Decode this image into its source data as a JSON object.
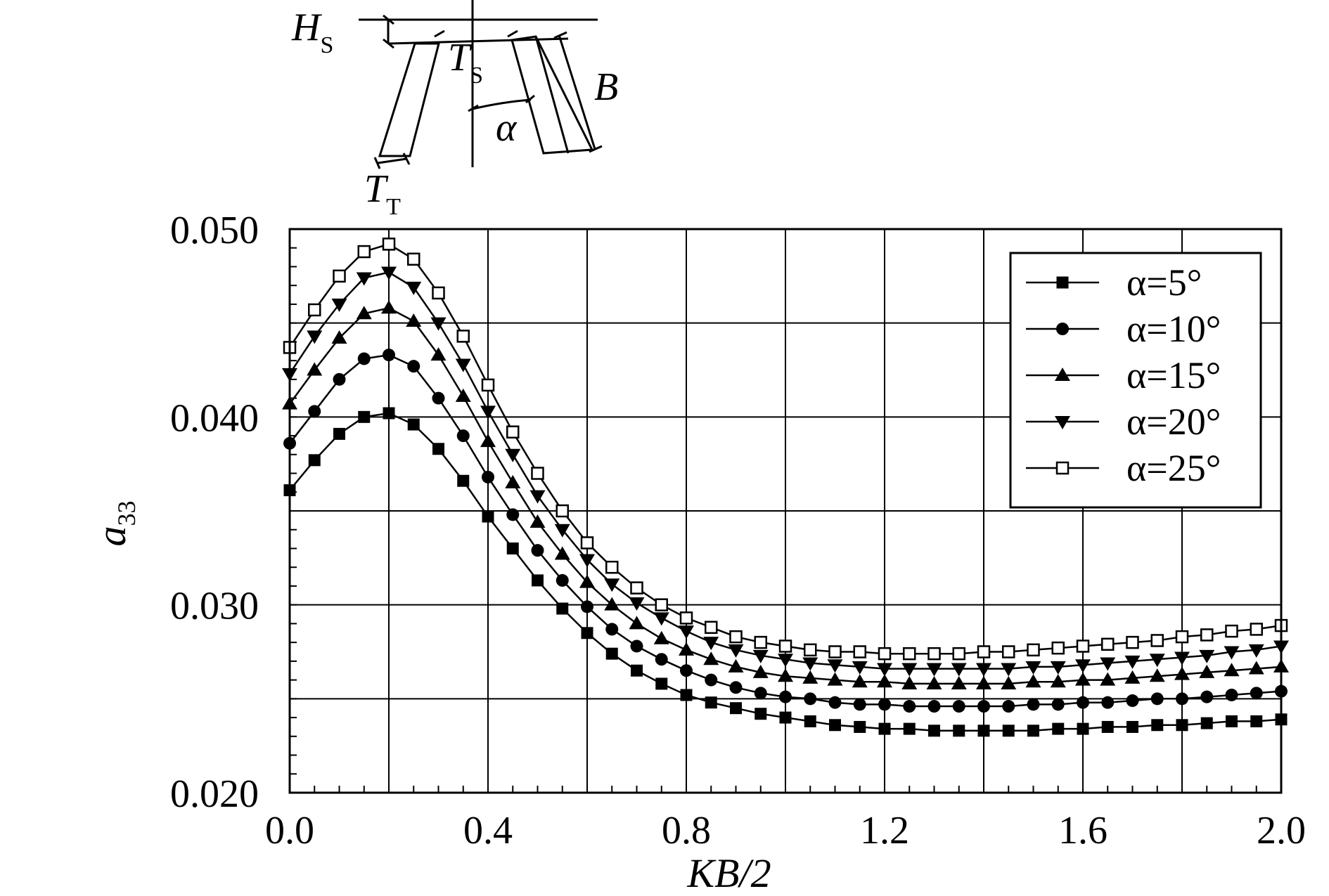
{
  "chart_data": {
    "type": "line",
    "xlabel": "KB/2",
    "ylabel_main": "a",
    "ylabel_sub": "33",
    "xlim": [
      0.0,
      2.0
    ],
    "ylim": [
      0.02,
      0.05
    ],
    "x_ticks": [
      "0.0",
      "0.4",
      "0.8",
      "1.2",
      "1.6",
      "2.0"
    ],
    "x_tick_values": [
      0.0,
      0.4,
      0.8,
      1.2,
      1.6,
      2.0
    ],
    "y_ticks": [
      "0.020",
      "0.030",
      "0.040",
      "0.050"
    ],
    "y_tick_values": [
      0.02,
      0.03,
      0.04,
      0.05
    ],
    "grid": true,
    "legend_position": "top-right",
    "x": [
      0.0,
      0.05,
      0.1,
      0.15,
      0.2,
      0.25,
      0.3,
      0.35,
      0.4,
      0.45,
      0.5,
      0.55,
      0.6,
      0.65,
      0.7,
      0.75,
      0.8,
      0.85,
      0.9,
      0.95,
      1.0,
      1.05,
      1.1,
      1.15,
      1.2,
      1.25,
      1.3,
      1.35,
      1.4,
      1.45,
      1.5,
      1.55,
      1.6,
      1.65,
      1.7,
      1.75,
      1.8,
      1.85,
      1.9,
      1.95,
      2.0
    ],
    "series": [
      {
        "name": "α=5°",
        "marker": "square-filled",
        "values": [
          0.0361,
          0.0377,
          0.0391,
          0.04,
          0.0402,
          0.0396,
          0.0383,
          0.0366,
          0.0347,
          0.033,
          0.0313,
          0.0298,
          0.0285,
          0.0274,
          0.0265,
          0.0258,
          0.0252,
          0.0248,
          0.0245,
          0.0242,
          0.024,
          0.0238,
          0.0236,
          0.0235,
          0.0234,
          0.0234,
          0.0233,
          0.0233,
          0.0233,
          0.0233,
          0.0233,
          0.0234,
          0.0234,
          0.0235,
          0.0235,
          0.0236,
          0.0236,
          0.0237,
          0.0238,
          0.0238,
          0.0239
        ]
      },
      {
        "name": "α=10°",
        "marker": "circle-filled",
        "values": [
          0.0386,
          0.0403,
          0.042,
          0.0431,
          0.0433,
          0.0427,
          0.041,
          0.039,
          0.0368,
          0.0348,
          0.0329,
          0.0313,
          0.0299,
          0.0287,
          0.0278,
          0.0271,
          0.0265,
          0.026,
          0.0256,
          0.0253,
          0.0251,
          0.025,
          0.0248,
          0.0247,
          0.0247,
          0.0246,
          0.0246,
          0.0246,
          0.0246,
          0.0246,
          0.0247,
          0.0247,
          0.0248,
          0.0248,
          0.0249,
          0.025,
          0.025,
          0.0251,
          0.0252,
          0.0253,
          0.0254
        ]
      },
      {
        "name": "α=15°",
        "marker": "triangle-up-filled",
        "values": [
          0.0407,
          0.0425,
          0.0442,
          0.0455,
          0.0458,
          0.0451,
          0.0433,
          0.0411,
          0.0387,
          0.0365,
          0.0344,
          0.0327,
          0.0312,
          0.03,
          0.029,
          0.0282,
          0.0276,
          0.0271,
          0.0267,
          0.0264,
          0.0262,
          0.0261,
          0.026,
          0.0259,
          0.0259,
          0.0258,
          0.0258,
          0.0258,
          0.0258,
          0.0258,
          0.0259,
          0.0259,
          0.026,
          0.026,
          0.0261,
          0.0262,
          0.0263,
          0.0264,
          0.0265,
          0.0266,
          0.0267
        ]
      },
      {
        "name": "α=20°",
        "marker": "triangle-down-filled",
        "values": [
          0.0423,
          0.0443,
          0.046,
          0.0474,
          0.0477,
          0.0469,
          0.045,
          0.0428,
          0.0403,
          0.038,
          0.0358,
          0.034,
          0.0324,
          0.0311,
          0.0301,
          0.0293,
          0.0286,
          0.028,
          0.0276,
          0.0273,
          0.0271,
          0.0269,
          0.0268,
          0.0267,
          0.0266,
          0.0266,
          0.0266,
          0.0266,
          0.0266,
          0.0266,
          0.0267,
          0.0267,
          0.0268,
          0.0269,
          0.027,
          0.0271,
          0.0272,
          0.0273,
          0.0275,
          0.0276,
          0.0278
        ]
      },
      {
        "name": "α=25°",
        "marker": "square-open",
        "values": [
          0.0437,
          0.0457,
          0.0475,
          0.0488,
          0.0492,
          0.0484,
          0.0466,
          0.0443,
          0.0417,
          0.0392,
          0.037,
          0.035,
          0.0333,
          0.032,
          0.0309,
          0.03,
          0.0293,
          0.0288,
          0.0283,
          0.028,
          0.0278,
          0.0276,
          0.0275,
          0.0275,
          0.0274,
          0.0274,
          0.0274,
          0.0274,
          0.0275,
          0.0275,
          0.0276,
          0.0277,
          0.0278,
          0.0279,
          0.028,
          0.0281,
          0.0283,
          0.0284,
          0.0286,
          0.0287,
          0.0289
        ]
      }
    ]
  },
  "inset_diagram": {
    "label_H": "H",
    "label_H_sub": "S",
    "label_Ts": "T",
    "label_Ts_sub": "S",
    "label_B": "B",
    "label_alpha": "α",
    "label_Tt": "T",
    "label_Tt_sub": "T"
  }
}
